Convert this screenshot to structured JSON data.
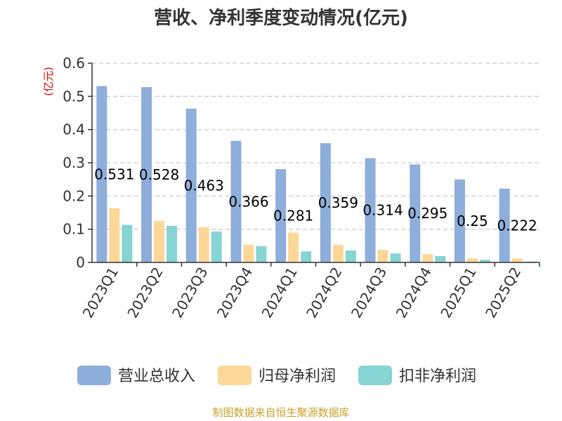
{
  "chart_data": {
    "type": "bar",
    "title": "营收、净利季度变动情况(亿元)",
    "ylabel": "(亿元)",
    "xlabel": "",
    "ylim": [
      0,
      0.6
    ],
    "yticks": [
      "0",
      "0.1",
      "0.2",
      "0.3",
      "0.4",
      "0.5",
      "0.6"
    ],
    "categories": [
      "2023Q1",
      "2023Q2",
      "2023Q3",
      "2023Q4",
      "2024Q1",
      "2024Q2",
      "2024Q3",
      "2024Q4",
      "2025Q1",
      "2025Q2"
    ],
    "series": [
      {
        "name": "营业总收入",
        "color": "#8eaedb",
        "values": [
          0.531,
          0.528,
          0.463,
          0.366,
          0.281,
          0.359,
          0.314,
          0.295,
          0.25,
          0.222
        ],
        "labels": [
          "0.531",
          "0.528",
          "0.463",
          "0.366",
          "0.281",
          "0.359",
          "0.314",
          "0.295",
          "0.25",
          "0.222"
        ]
      },
      {
        "name": "归母净利润",
        "color": "#fdd797",
        "values": [
          0.163,
          0.125,
          0.106,
          0.053,
          0.09,
          0.053,
          0.038,
          0.025,
          0.012,
          0.012
        ]
      },
      {
        "name": "扣非净利润",
        "color": "#86d4d4",
        "values": [
          0.113,
          0.11,
          0.093,
          0.049,
          0.033,
          0.036,
          0.027,
          0.019,
          0.008,
          0.003
        ]
      }
    ],
    "grid": true,
    "legend_position": "bottom"
  },
  "source_text": "制图数据来自恒生聚源数据库",
  "colors": {
    "unit": "#e00000",
    "source": "#c8a22c",
    "grid": "#cccccc",
    "axis": "#333333"
  }
}
